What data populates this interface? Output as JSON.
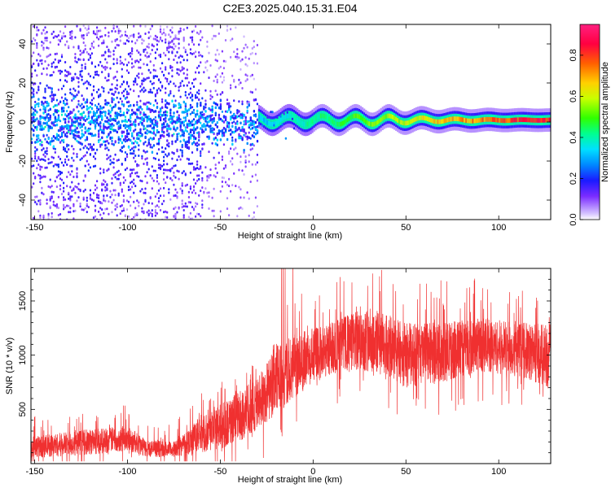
{
  "title": "C2E3.2025.040.15.31.E04",
  "chart_data": [
    {
      "type": "heatmap",
      "xlabel": "Height of straight line (km)",
      "ylabel": "Frequency (Hz)",
      "xlim": [
        -152,
        128
      ],
      "ylim": [
        -50,
        50
      ],
      "x_ticks": [
        -150,
        -100,
        -50,
        0,
        50,
        100
      ],
      "y_ticks": [
        -40,
        -20,
        0,
        20,
        40
      ],
      "colorbar": {
        "label": "Normalized spectral amplitude",
        "range": [
          0,
          0.95
        ],
        "ticks": [
          0.0,
          0.2,
          0.4,
          0.6,
          0.8
        ]
      },
      "ridge": {
        "description_points": [
          {
            "x": -40,
            "y": 0,
            "amplitude": 0.35
          },
          {
            "x": 0,
            "y": 1,
            "amplitude": 0.7
          },
          {
            "x": 50,
            "y": 1,
            "amplitude": 0.85
          },
          {
            "x": 128,
            "y": 1,
            "amplitude": 0.95
          }
        ]
      },
      "noise_region": {
        "x_from": -152,
        "x_to": -30
      }
    },
    {
      "type": "line",
      "xlabel": "Height of straight line (km)",
      "ylabel": "SNR (10 * v/v)",
      "xlim": [
        -152,
        128
      ],
      "ylim": [
        0,
        1800
      ],
      "x_ticks": [
        -150,
        -100,
        -50,
        0,
        50,
        100
      ],
      "y_ticks": [
        500,
        1000,
        1500
      ],
      "color": "#f03030",
      "envelope": [
        {
          "x": -152,
          "low": 50,
          "high": 250
        },
        {
          "x": -120,
          "low": 80,
          "high": 320
        },
        {
          "x": -100,
          "low": 120,
          "high": 350
        },
        {
          "x": -90,
          "low": 60,
          "high": 220
        },
        {
          "x": -75,
          "low": 60,
          "high": 200
        },
        {
          "x": -60,
          "low": 100,
          "high": 450
        },
        {
          "x": -45,
          "low": 150,
          "high": 600
        },
        {
          "x": -30,
          "low": 300,
          "high": 800
        },
        {
          "x": -20,
          "low": 450,
          "high": 1100
        },
        {
          "x": -10,
          "low": 600,
          "high": 1200
        },
        {
          "x": 0,
          "low": 750,
          "high": 1250
        },
        {
          "x": 15,
          "low": 850,
          "high": 1350
        },
        {
          "x": 30,
          "low": 850,
          "high": 1450
        },
        {
          "x": 50,
          "low": 700,
          "high": 1300
        },
        {
          "x": 70,
          "low": 750,
          "high": 1300
        },
        {
          "x": 90,
          "low": 850,
          "high": 1350
        },
        {
          "x": 110,
          "low": 800,
          "high": 1300
        },
        {
          "x": 128,
          "low": 700,
          "high": 1300
        }
      ]
    }
  ]
}
